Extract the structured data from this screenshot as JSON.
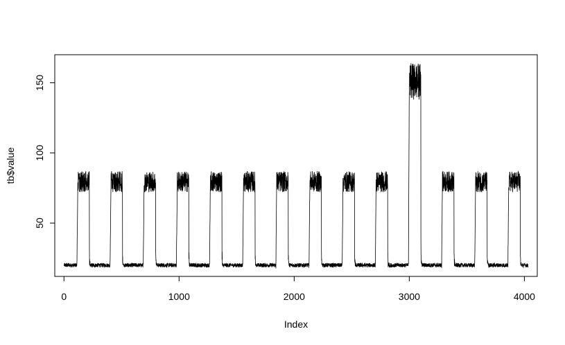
{
  "chart_data": {
    "type": "line",
    "xlabel": "Index",
    "ylabel": "tb$value",
    "xlim": [
      -80,
      4112
    ],
    "ylim": [
      12,
      170
    ],
    "xticks": [
      0,
      1000,
      2000,
      3000,
      4000
    ],
    "yticks": [
      50,
      100,
      150
    ],
    "xtick_labels": [
      "0",
      "1000",
      "2000",
      "3000",
      "4000"
    ],
    "ytick_labels": [
      "50",
      "100",
      "150"
    ],
    "grid": false,
    "line_color": "#000000",
    "n_points": 4032,
    "baseline": 20,
    "pulses": [
      {
        "start": 112,
        "end": 220,
        "low": 72,
        "high": 87
      },
      {
        "start": 400,
        "end": 508,
        "low": 72,
        "high": 87
      },
      {
        "start": 688,
        "end": 796,
        "low": 72,
        "high": 87
      },
      {
        "start": 976,
        "end": 1084,
        "low": 72,
        "high": 87
      },
      {
        "start": 1264,
        "end": 1372,
        "low": 72,
        "high": 87
      },
      {
        "start": 1552,
        "end": 1660,
        "low": 72,
        "high": 87
      },
      {
        "start": 1840,
        "end": 1948,
        "low": 72,
        "high": 87
      },
      {
        "start": 2128,
        "end": 2236,
        "low": 72,
        "high": 87
      },
      {
        "start": 2416,
        "end": 2524,
        "low": 72,
        "high": 87
      },
      {
        "start": 2704,
        "end": 2812,
        "low": 72,
        "high": 87
      },
      {
        "start": 2992,
        "end": 3100,
        "low": 138,
        "high": 164
      },
      {
        "start": 3280,
        "end": 3388,
        "low": 72,
        "high": 87
      },
      {
        "start": 3568,
        "end": 3676,
        "low": 72,
        "high": 87
      },
      {
        "start": 3856,
        "end": 3964,
        "low": 72,
        "high": 87
      }
    ]
  }
}
